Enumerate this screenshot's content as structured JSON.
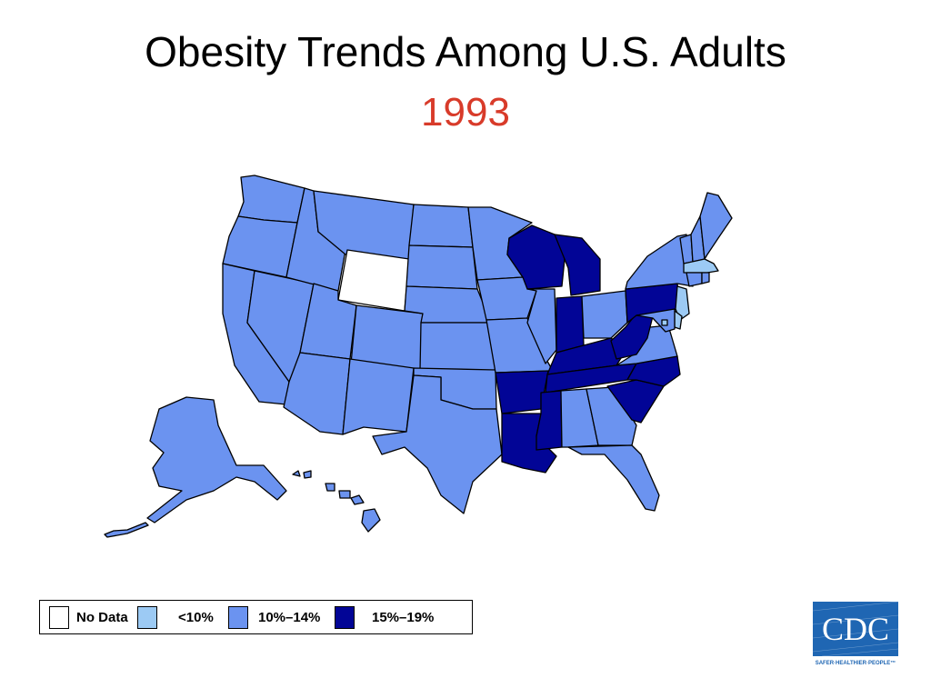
{
  "title": "Obesity Trends Among U.S. Adults",
  "year": "1993",
  "colors": {
    "title": "#000000",
    "year": "#d83b2a",
    "no_data": "#ffffff",
    "lt10": "#9ccaf4",
    "p10_14": "#6b93f0",
    "p15_19": "#020596",
    "logo_bg": "#1f66b3"
  },
  "legend": [
    {
      "key": "no_data",
      "label": "No Data"
    },
    {
      "key": "lt10",
      "label": "<10%"
    },
    {
      "key": "p10_14",
      "label": "10%–14%"
    },
    {
      "key": "p15_19",
      "label": "15%–19%"
    }
  ],
  "map": {
    "states": {
      "WA": "p10_14",
      "OR": "p10_14",
      "CA": "p10_14",
      "NV": "p10_14",
      "ID": "p10_14",
      "MT": "p10_14",
      "WY": "no_data",
      "UT": "p10_14",
      "AZ": "p10_14",
      "CO": "p10_14",
      "NM": "p10_14",
      "ND": "p10_14",
      "SD": "p10_14",
      "NE": "p10_14",
      "KS": "p10_14",
      "OK": "p10_14",
      "TX": "p10_14",
      "MN": "p10_14",
      "IA": "p10_14",
      "MO": "p10_14",
      "AR": "p15_19",
      "LA": "p15_19",
      "WI": "p15_19",
      "IL": "p10_14",
      "MI": "p15_19",
      "IN": "p15_19",
      "OH": "p10_14",
      "KY": "p15_19",
      "TN": "p15_19",
      "MS": "p15_19",
      "AL": "p10_14",
      "GA": "p10_14",
      "FL": "p10_14",
      "SC": "p15_19",
      "NC": "p15_19",
      "VA": "p10_14",
      "WV": "p15_19",
      "PA": "p15_19",
      "NY": "p10_14",
      "VT": "p10_14",
      "NH": "p10_14",
      "ME": "p10_14",
      "MA": "lt10",
      "CT": "p10_14",
      "RI": "p10_14",
      "NJ": "lt10",
      "DE": "lt10",
      "MD": "p10_14",
      "DC": "lt10",
      "AK": "p10_14",
      "HI": "p10_14"
    }
  },
  "logo": {
    "text": "CDC",
    "tagline": "SAFER·HEALTHIER·PEOPLE™"
  }
}
